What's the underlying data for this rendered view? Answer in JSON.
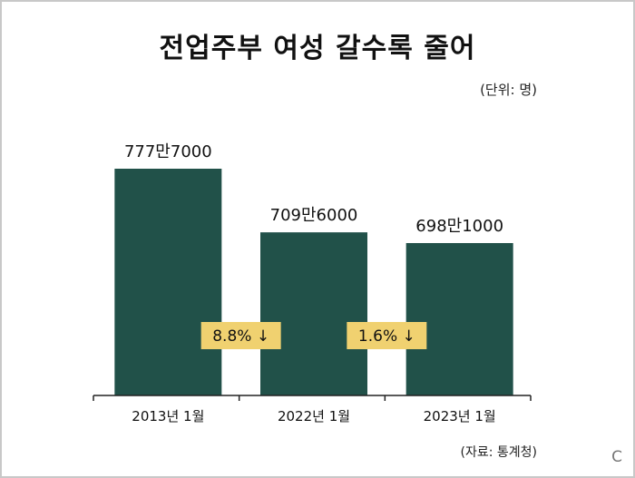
{
  "title": "전업주부 여성 갈수록 줄어",
  "unit_note": "(단위: 명)",
  "source_note": "(자료:  통계청)",
  "corner_mark": "C",
  "colors": {
    "bar": "#215149",
    "change_box": "#f0d170",
    "axis": "#222222"
  },
  "chart_data": {
    "type": "bar",
    "categories": [
      "2013년 1월",
      "2022년 1월",
      "2023년 1월"
    ],
    "values": [
      7777000,
      7096000,
      6981000
    ],
    "value_labels": [
      "777만7000",
      "709만6000",
      "698만1000"
    ],
    "changes": [
      {
        "between": [
          0,
          1
        ],
        "label": "8.8% ↓"
      },
      {
        "between": [
          1,
          2
        ],
        "label": "1.6% ↓"
      }
    ],
    "ylim": [
      5350000,
      7777000
    ],
    "grid": false,
    "legend": "none"
  }
}
